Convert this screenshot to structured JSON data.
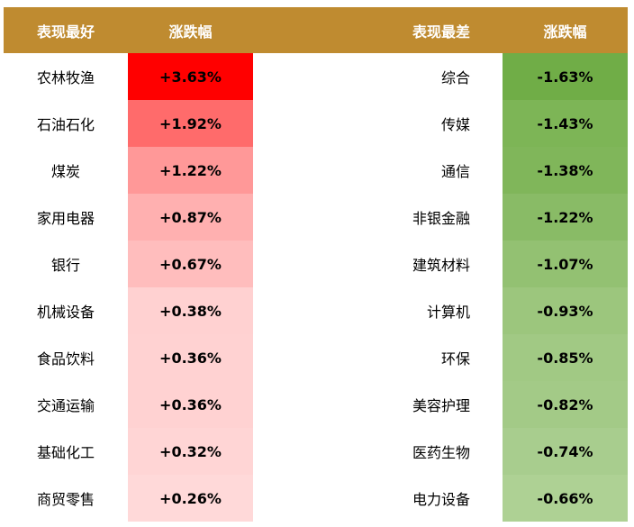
{
  "headers": {
    "best": "表现最好",
    "best_change": "涨跌幅",
    "worst": "表现最差",
    "worst_change": "涨跌幅"
  },
  "rows": [
    {
      "best": "农林牧渔",
      "best_change": "+3.63%",
      "best_color": "#ff0000",
      "worst": "综合",
      "worst_change": "-1.63%",
      "worst_color": "#70ad47"
    },
    {
      "best": "石油石化",
      "best_change": "+1.92%",
      "best_color": "#ff6b6b",
      "worst": "传媒",
      "worst_change": "-1.43%",
      "worst_color": "#7db556"
    },
    {
      "best": "煤炭",
      "best_change": "+1.22%",
      "best_color": "#ff9898",
      "worst": "通信",
      "worst_change": "-1.38%",
      "worst_color": "#80b65a"
    },
    {
      "best": "家用电器",
      "best_change": "+0.87%",
      "best_color": "#ffb0b0",
      "worst": "非银金融",
      "worst_change": "-1.22%",
      "worst_color": "#89bb66"
    },
    {
      "best": "银行",
      "best_change": "+0.67%",
      "best_color": "#ffbdbd",
      "worst": "建筑材料",
      "worst_change": "-1.07%",
      "worst_color": "#93c172"
    },
    {
      "best": "机械设备",
      "best_change": "+0.38%",
      "best_color": "#ffd1d1",
      "worst": "计算机",
      "worst_change": "-0.93%",
      "worst_color": "#9cc67d"
    },
    {
      "best": "食品饮料",
      "best_change": "+0.36%",
      "best_color": "#ffd2d2",
      "worst": "环保",
      "worst_change": "-0.85%",
      "worst_color": "#a1c984"
    },
    {
      "best": "交通运输",
      "best_change": "+0.36%",
      "best_color": "#ffd2d2",
      "worst": "美容护理",
      "worst_change": "-0.82%",
      "worst_color": "#a3ca87"
    },
    {
      "best": "基础化工",
      "best_change": "+0.32%",
      "best_color": "#ffd5d5",
      "worst": "医药生物",
      "worst_change": "-0.74%",
      "worst_color": "#a8cd8e"
    },
    {
      "best": "商贸零售",
      "best_change": "+0.26%",
      "best_color": "#ffd9d9",
      "worst": "电力设备",
      "worst_change": "-0.66%",
      "worst_color": "#aed194"
    }
  ]
}
